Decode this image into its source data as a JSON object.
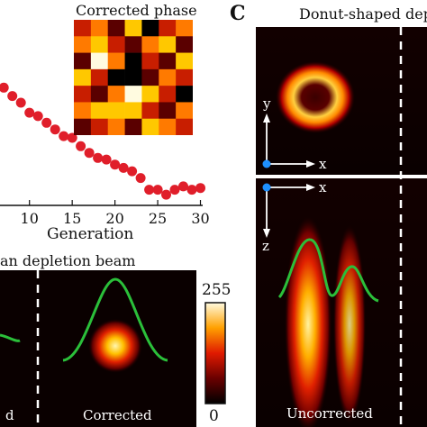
{
  "chart_data": [
    {
      "type": "scatter",
      "title": "",
      "xlabel": "Generation",
      "ylabel": "",
      "xlim": [
        5.5,
        31
      ],
      "x_ticks": [
        "10",
        "15",
        "20",
        "25",
        "30"
      ],
      "series": [
        {
          "x": [
            6,
            7,
            8,
            9,
            10,
            11,
            12,
            13,
            14,
            15,
            16,
            17,
            18,
            19,
            20,
            21,
            22,
            23,
            24,
            25,
            26,
            27,
            28,
            29,
            30
          ],
          "values": [
            96,
            95,
            90,
            86,
            80,
            78,
            74,
            70,
            66,
            65,
            60,
            56,
            53,
            52,
            49,
            47,
            45,
            41,
            34,
            34,
            31,
            34,
            36,
            34,
            35
          ]
        }
      ]
    }
  ],
  "figure": {
    "inset_title": "Corrected phase",
    "panel_letter": "C",
    "panel_c_title": "Donut-shaped depl",
    "gauss_title": "an depletion beam",
    "colorbar_max": "255",
    "colorbar_min": "0",
    "label_left_partial": "d",
    "label_corrected": "Corrected",
    "label_uncorrected": "Uncorrected",
    "axis_x": "x",
    "axis_y": "y",
    "axis_z": "z",
    "phase_grid": [
      [
        2,
        3,
        1,
        4,
        0,
        2,
        3
      ],
      [
        3,
        4,
        2,
        1,
        3,
        4,
        1
      ],
      [
        1,
        5,
        3,
        0,
        2,
        1,
        4
      ],
      [
        4,
        2,
        0,
        0,
        1,
        3,
        2
      ],
      [
        2,
        1,
        3,
        5,
        4,
        2,
        0
      ],
      [
        3,
        4,
        4,
        4,
        2,
        1,
        3
      ],
      [
        1,
        2,
        3,
        1,
        4,
        3,
        2
      ]
    ],
    "colors": {
      "marker": "#e01e2a",
      "curve": "#2bbf3a",
      "background_dark": "#0a0000",
      "axis_arrow": "#ffffff",
      "origin_dot": "#1e90ff"
    }
  }
}
